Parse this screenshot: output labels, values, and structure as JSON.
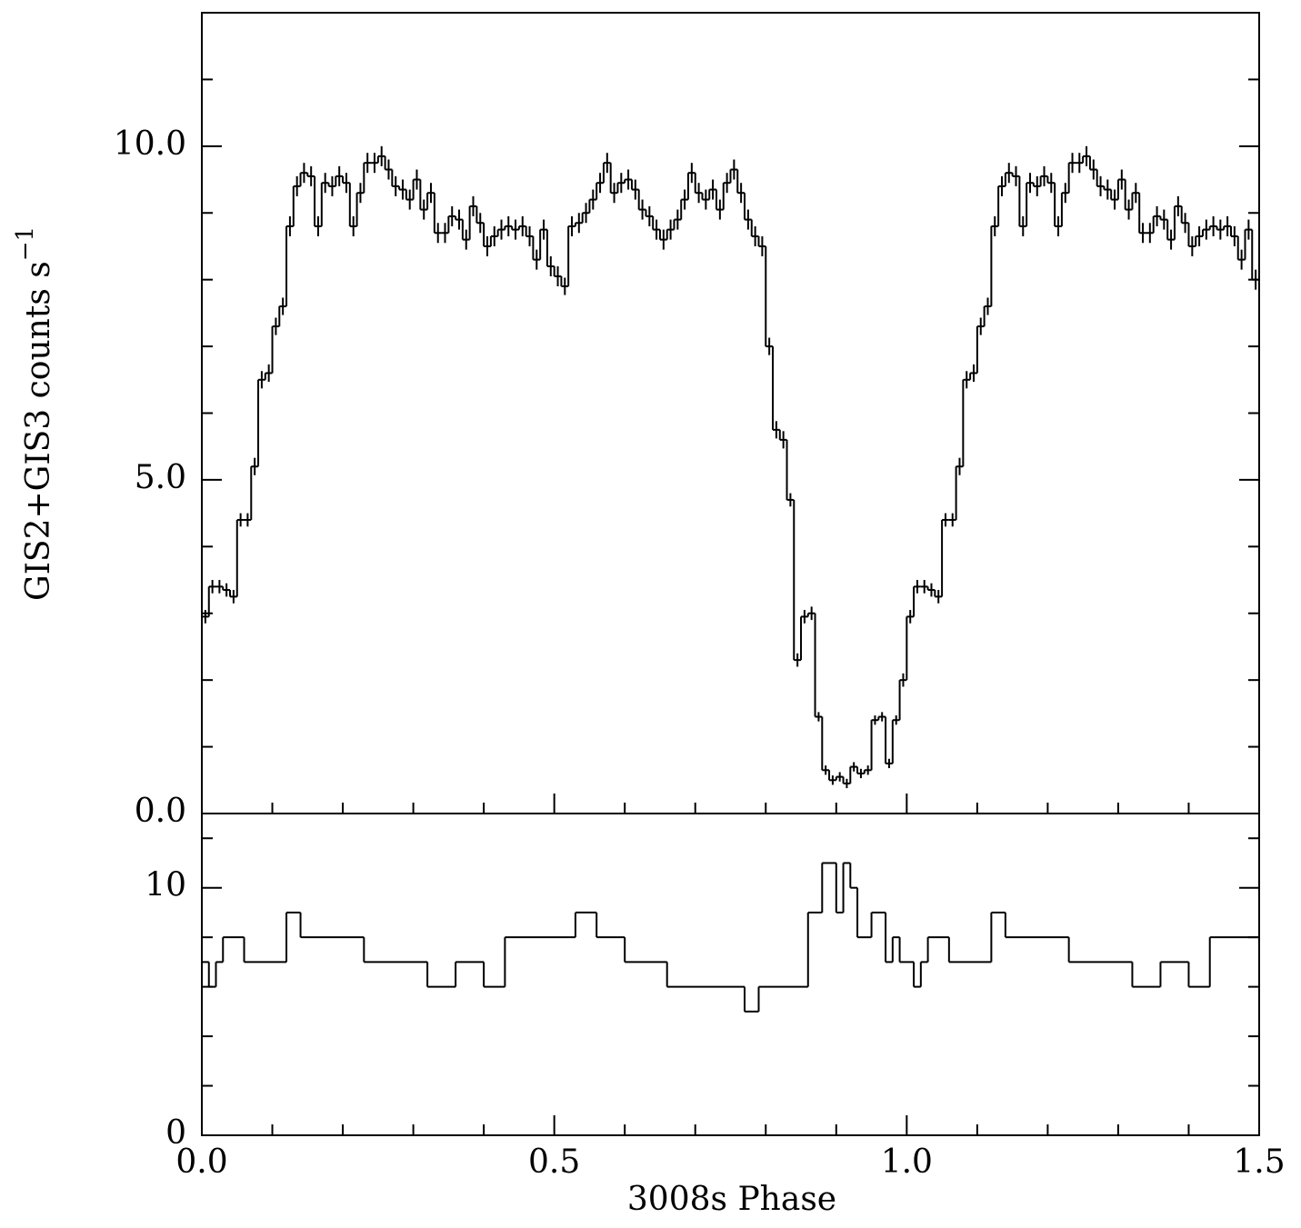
{
  "chart_data": [
    {
      "type": "histogram",
      "ylabel": "GIS2+GIS3 counts s",
      "ylabel_sup": "−1",
      "color": "#000000",
      "xlim": [
        0,
        1.5
      ],
      "ylim": [
        0,
        12
      ],
      "yticks": [
        {
          "value": 0,
          "label": "0.0"
        },
        {
          "value": 5,
          "label": "5.0"
        },
        {
          "value": 10,
          "label": "10.0"
        }
      ],
      "yminorticks": [
        1,
        2,
        3,
        4,
        6,
        7,
        8,
        9,
        11
      ],
      "bins": [
        0,
        0.01,
        0.02,
        0.03,
        0.04,
        0.05,
        0.06,
        0.07,
        0.08,
        0.09,
        0.1,
        0.11,
        0.12,
        0.13,
        0.14,
        0.15,
        0.16,
        0.17,
        0.18,
        0.19,
        0.2,
        0.21,
        0.22,
        0.23,
        0.24,
        0.25,
        0.26,
        0.27,
        0.28,
        0.29,
        0.3,
        0.31,
        0.32,
        0.33,
        0.34,
        0.35,
        0.36,
        0.37,
        0.38,
        0.39,
        0.4,
        0.41,
        0.42,
        0.43,
        0.44,
        0.45,
        0.46,
        0.47,
        0.48,
        0.49,
        0.5,
        0.51,
        0.52,
        0.53,
        0.54,
        0.55,
        0.56,
        0.57,
        0.58,
        0.59,
        0.6,
        0.61,
        0.62,
        0.63,
        0.64,
        0.65,
        0.66,
        0.67,
        0.68,
        0.69,
        0.7,
        0.71,
        0.72,
        0.73,
        0.74,
        0.75,
        0.76,
        0.77,
        0.78,
        0.79,
        0.8,
        0.81,
        0.82,
        0.83,
        0.84,
        0.85,
        0.86,
        0.87,
        0.88,
        0.89,
        0.9,
        0.91,
        0.92,
        0.93,
        0.94,
        0.95,
        0.96,
        0.97,
        0.98,
        0.99,
        1.0,
        1.01,
        1.02,
        1.03,
        1.04,
        1.05,
        1.06,
        1.07,
        1.08,
        1.09,
        1.1,
        1.11,
        1.12,
        1.13,
        1.14,
        1.15,
        1.16,
        1.17,
        1.18,
        1.19,
        1.2,
        1.21,
        1.22,
        1.23,
        1.24,
        1.25,
        1.26,
        1.27,
        1.28,
        1.29,
        1.3,
        1.31,
        1.32,
        1.33,
        1.34,
        1.35,
        1.36,
        1.37,
        1.38,
        1.39,
        1.4,
        1.41,
        1.42,
        1.43,
        1.44,
        1.45,
        1.46,
        1.47,
        1.48,
        1.49,
        1.5
      ],
      "values": [
        2.95,
        3.4,
        3.4,
        3.35,
        3.25,
        4.4,
        4.4,
        5.2,
        6.5,
        6.6,
        7.3,
        7.6,
        8.8,
        9.4,
        9.6,
        9.55,
        8.8,
        9.45,
        9.4,
        9.55,
        9.45,
        8.8,
        9.3,
        9.75,
        9.75,
        9.85,
        9.65,
        9.4,
        9.35,
        9.2,
        9.5,
        9.05,
        9.3,
        8.7,
        8.7,
        8.95,
        8.9,
        8.6,
        9.1,
        8.85,
        8.5,
        8.65,
        8.75,
        8.8,
        8.75,
        8.8,
        8.65,
        8.3,
        8.75,
        8.2,
        8.05,
        7.9,
        8.8,
        8.85,
        9.0,
        9.2,
        9.45,
        9.75,
        9.3,
        9.45,
        9.5,
        9.35,
        9.05,
        8.95,
        8.75,
        8.6,
        8.75,
        8.9,
        9.2,
        9.6,
        9.3,
        9.2,
        9.35,
        9.05,
        9.45,
        9.65,
        9.3,
        8.9,
        8.65,
        8.5,
        7.0,
        5.75,
        5.6,
        4.7,
        2.3,
        2.95,
        3.0,
        1.45,
        0.65,
        0.5,
        0.55,
        0.45,
        0.7,
        0.6,
        0.65,
        1.4,
        1.45,
        0.75,
        1.4,
        2.0,
        2.95,
        3.4,
        3.4,
        3.35,
        3.25,
        4.4,
        4.4,
        5.2,
        6.5,
        6.6,
        7.3,
        7.6,
        8.8,
        9.4,
        9.6,
        9.55,
        8.8,
        9.45,
        9.4,
        9.55,
        9.45,
        8.8,
        9.3,
        9.75,
        9.75,
        9.85,
        9.65,
        9.4,
        9.35,
        9.2,
        9.5,
        9.05,
        9.3,
        8.7,
        8.7,
        8.95,
        8.9,
        8.6,
        9.1,
        8.85,
        8.5,
        8.65,
        8.75,
        8.8,
        8.75,
        8.8,
        8.65,
        8.3,
        8.75,
        8.0
      ],
      "errors": [
        0.1,
        0.1,
        0.1,
        0.1,
        0.1,
        0.1,
        0.1,
        0.13,
        0.13,
        0.13,
        0.13,
        0.13,
        0.15,
        0.15,
        0.15,
        0.15,
        0.15,
        0.15,
        0.15,
        0.15,
        0.15,
        0.15,
        0.15,
        0.15,
        0.15,
        0.15,
        0.15,
        0.15,
        0.15,
        0.15,
        0.15,
        0.15,
        0.15,
        0.15,
        0.15,
        0.15,
        0.15,
        0.15,
        0.15,
        0.15,
        0.15,
        0.15,
        0.15,
        0.15,
        0.15,
        0.15,
        0.15,
        0.15,
        0.15,
        0.15,
        0.15,
        0.13,
        0.15,
        0.15,
        0.15,
        0.15,
        0.15,
        0.15,
        0.15,
        0.15,
        0.15,
        0.15,
        0.15,
        0.15,
        0.15,
        0.15,
        0.15,
        0.15,
        0.15,
        0.15,
        0.15,
        0.15,
        0.15,
        0.15,
        0.15,
        0.15,
        0.15,
        0.15,
        0.15,
        0.15,
        0.13,
        0.13,
        0.13,
        0.1,
        0.1,
        0.1,
        0.1,
        0.07,
        0.07,
        0.07,
        0.07,
        0.07,
        0.07,
        0.07,
        0.07,
        0.07,
        0.07,
        0.07,
        0.07,
        0.1,
        0.1,
        0.1,
        0.1,
        0.1,
        0.1,
        0.1,
        0.1,
        0.13,
        0.13,
        0.13,
        0.13,
        0.13,
        0.15,
        0.15,
        0.15,
        0.15,
        0.15,
        0.15,
        0.15,
        0.15,
        0.15,
        0.15,
        0.15,
        0.15,
        0.15,
        0.15,
        0.15,
        0.15,
        0.15,
        0.15,
        0.15,
        0.15,
        0.15,
        0.15,
        0.15,
        0.15,
        0.15,
        0.15,
        0.15,
        0.15,
        0.15,
        0.15,
        0.15,
        0.15,
        0.15,
        0.15,
        0.15,
        0.15,
        0.15,
        0.15
      ]
    },
    {
      "type": "histogram",
      "xlabel": "3008s Phase",
      "color": "#000000",
      "xlim": [
        0,
        1.5
      ],
      "ylim": [
        0,
        13
      ],
      "xticks": [
        {
          "value": 0,
          "label": "0.0"
        },
        {
          "value": 0.5,
          "label": "0.5"
        },
        {
          "value": 1,
          "label": "1.0"
        },
        {
          "value": 1.5,
          "label": "1.5"
        }
      ],
      "xminorticks": [
        0.1,
        0.2,
        0.3,
        0.4,
        0.6,
        0.7,
        0.8,
        0.9,
        1.1,
        1.2,
        1.3,
        1.4
      ],
      "yticks": [
        0,
        10
      ],
      "yminorticks": [
        2,
        4,
        6,
        8,
        12
      ],
      "bins": [
        0,
        0.01,
        0.02,
        0.03,
        0.06,
        0.12,
        0.14,
        0.23,
        0.32,
        0.36,
        0.4,
        0.43,
        0.53,
        0.56,
        0.6,
        0.66,
        0.77,
        0.79,
        0.86,
        0.88,
        0.9,
        0.91,
        0.92,
        0.93,
        0.95,
        0.97,
        0.98,
        0.99,
        1.01,
        1.02,
        1.03,
        1.06,
        1.12,
        1.14,
        1.23,
        1.32,
        1.36,
        1.4,
        1.43,
        1.5
      ],
      "values": [
        7,
        6,
        7,
        8,
        7,
        9,
        8,
        7,
        6,
        7,
        6,
        8,
        9,
        8,
        7,
        6,
        5,
        6,
        9,
        11,
        9,
        11,
        10,
        8,
        9,
        7,
        8,
        7,
        6,
        7,
        8,
        7,
        9,
        8,
        7,
        6,
        7,
        6,
        8
      ]
    }
  ]
}
